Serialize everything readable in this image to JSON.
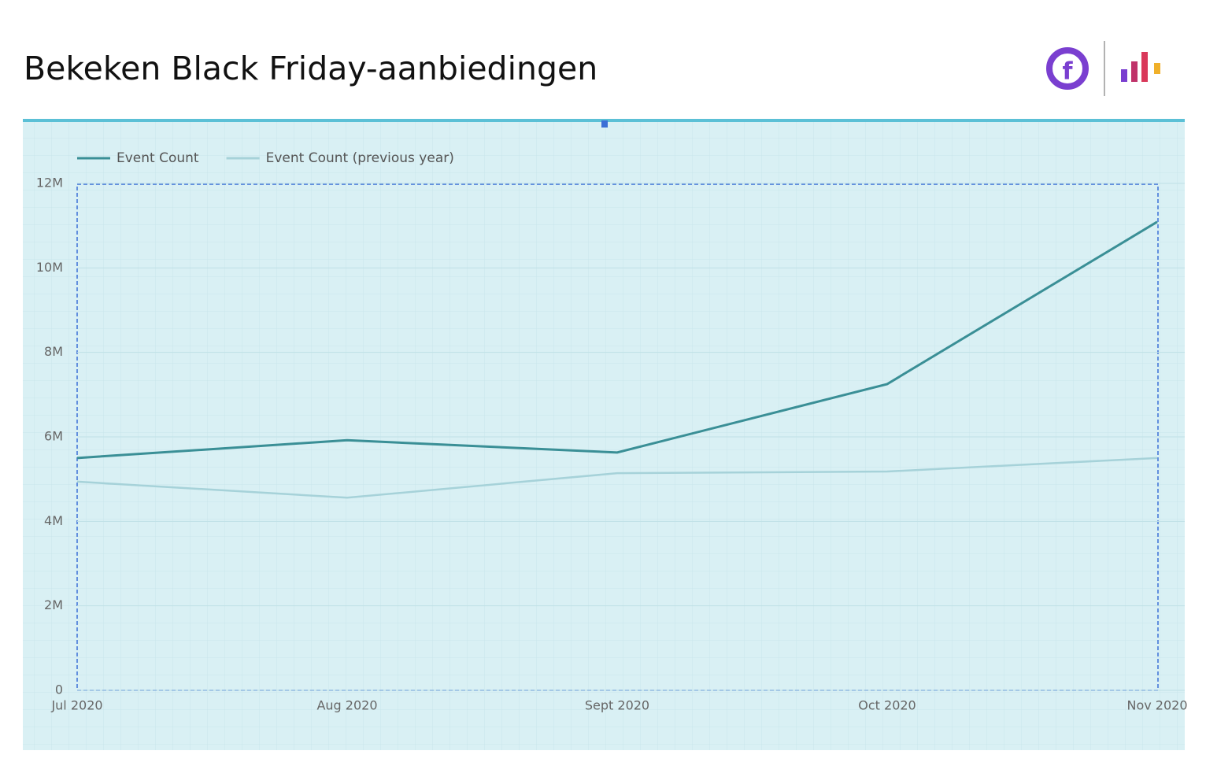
{
  "chart_data": {
    "type": "line",
    "title": "Bekeken Black Friday-aanbiedingen",
    "categories": [
      "Jul 2020",
      "Aug 2020",
      "Sept 2020",
      "Oct 2020",
      "Nov 2020"
    ],
    "series": [
      {
        "name": "Event Count",
        "color": "#3a8f96",
        "values": [
          5500000,
          5920000,
          5630000,
          7250000,
          11090000
        ]
      },
      {
        "name": "Event Count (previous year)",
        "color": "#a6d2d9",
        "values": [
          4940000,
          4560000,
          5140000,
          5180000,
          5500000
        ]
      }
    ],
    "ylim": [
      0,
      12000000
    ],
    "yticks": [
      0,
      {
        "value": 2000000,
        "label": "2M"
      },
      {
        "value": 4000000,
        "label": "4M"
      },
      {
        "value": 6000000,
        "label": "6M"
      },
      {
        "value": 8000000,
        "label": "8M"
      },
      {
        "value": 10000000,
        "label": "10M"
      },
      {
        "value": 12000000,
        "label": "12M"
      }
    ],
    "grid": true,
    "legend": "top-left"
  }
}
